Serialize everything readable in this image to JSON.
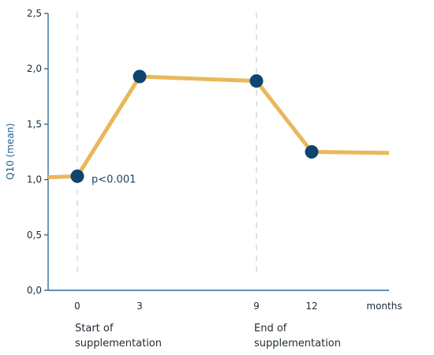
{
  "chart_data": {
    "type": "line",
    "ylabel": "Q10 (mean)",
    "xlabel": "months",
    "ylim": [
      0,
      2.5
    ],
    "y_ticks": [
      "0,0",
      "0,5",
      "1,0",
      "1,5",
      "2,0",
      "2,5"
    ],
    "x_ticks": [
      "0",
      "3",
      "9",
      "12"
    ],
    "series": [
      {
        "x": [
          0,
          3,
          9,
          12
        ],
        "y": [
          1.03,
          1.93,
          1.89,
          1.25
        ]
      }
    ],
    "line_extension": {
      "start_y": 1.02,
      "end_y": 1.24
    },
    "annotation": "p<0.001",
    "markers": [
      {
        "x": 0,
        "label_line1": "Start of",
        "label_line2": "supplementation"
      },
      {
        "x": 9,
        "label_line1": "End of",
        "label_line2": "supplementation"
      }
    ],
    "colors": {
      "line": "#e8b85a",
      "marker": "#0e4570",
      "axis": "#2f6f94",
      "guide": "#c8ced4"
    }
  }
}
